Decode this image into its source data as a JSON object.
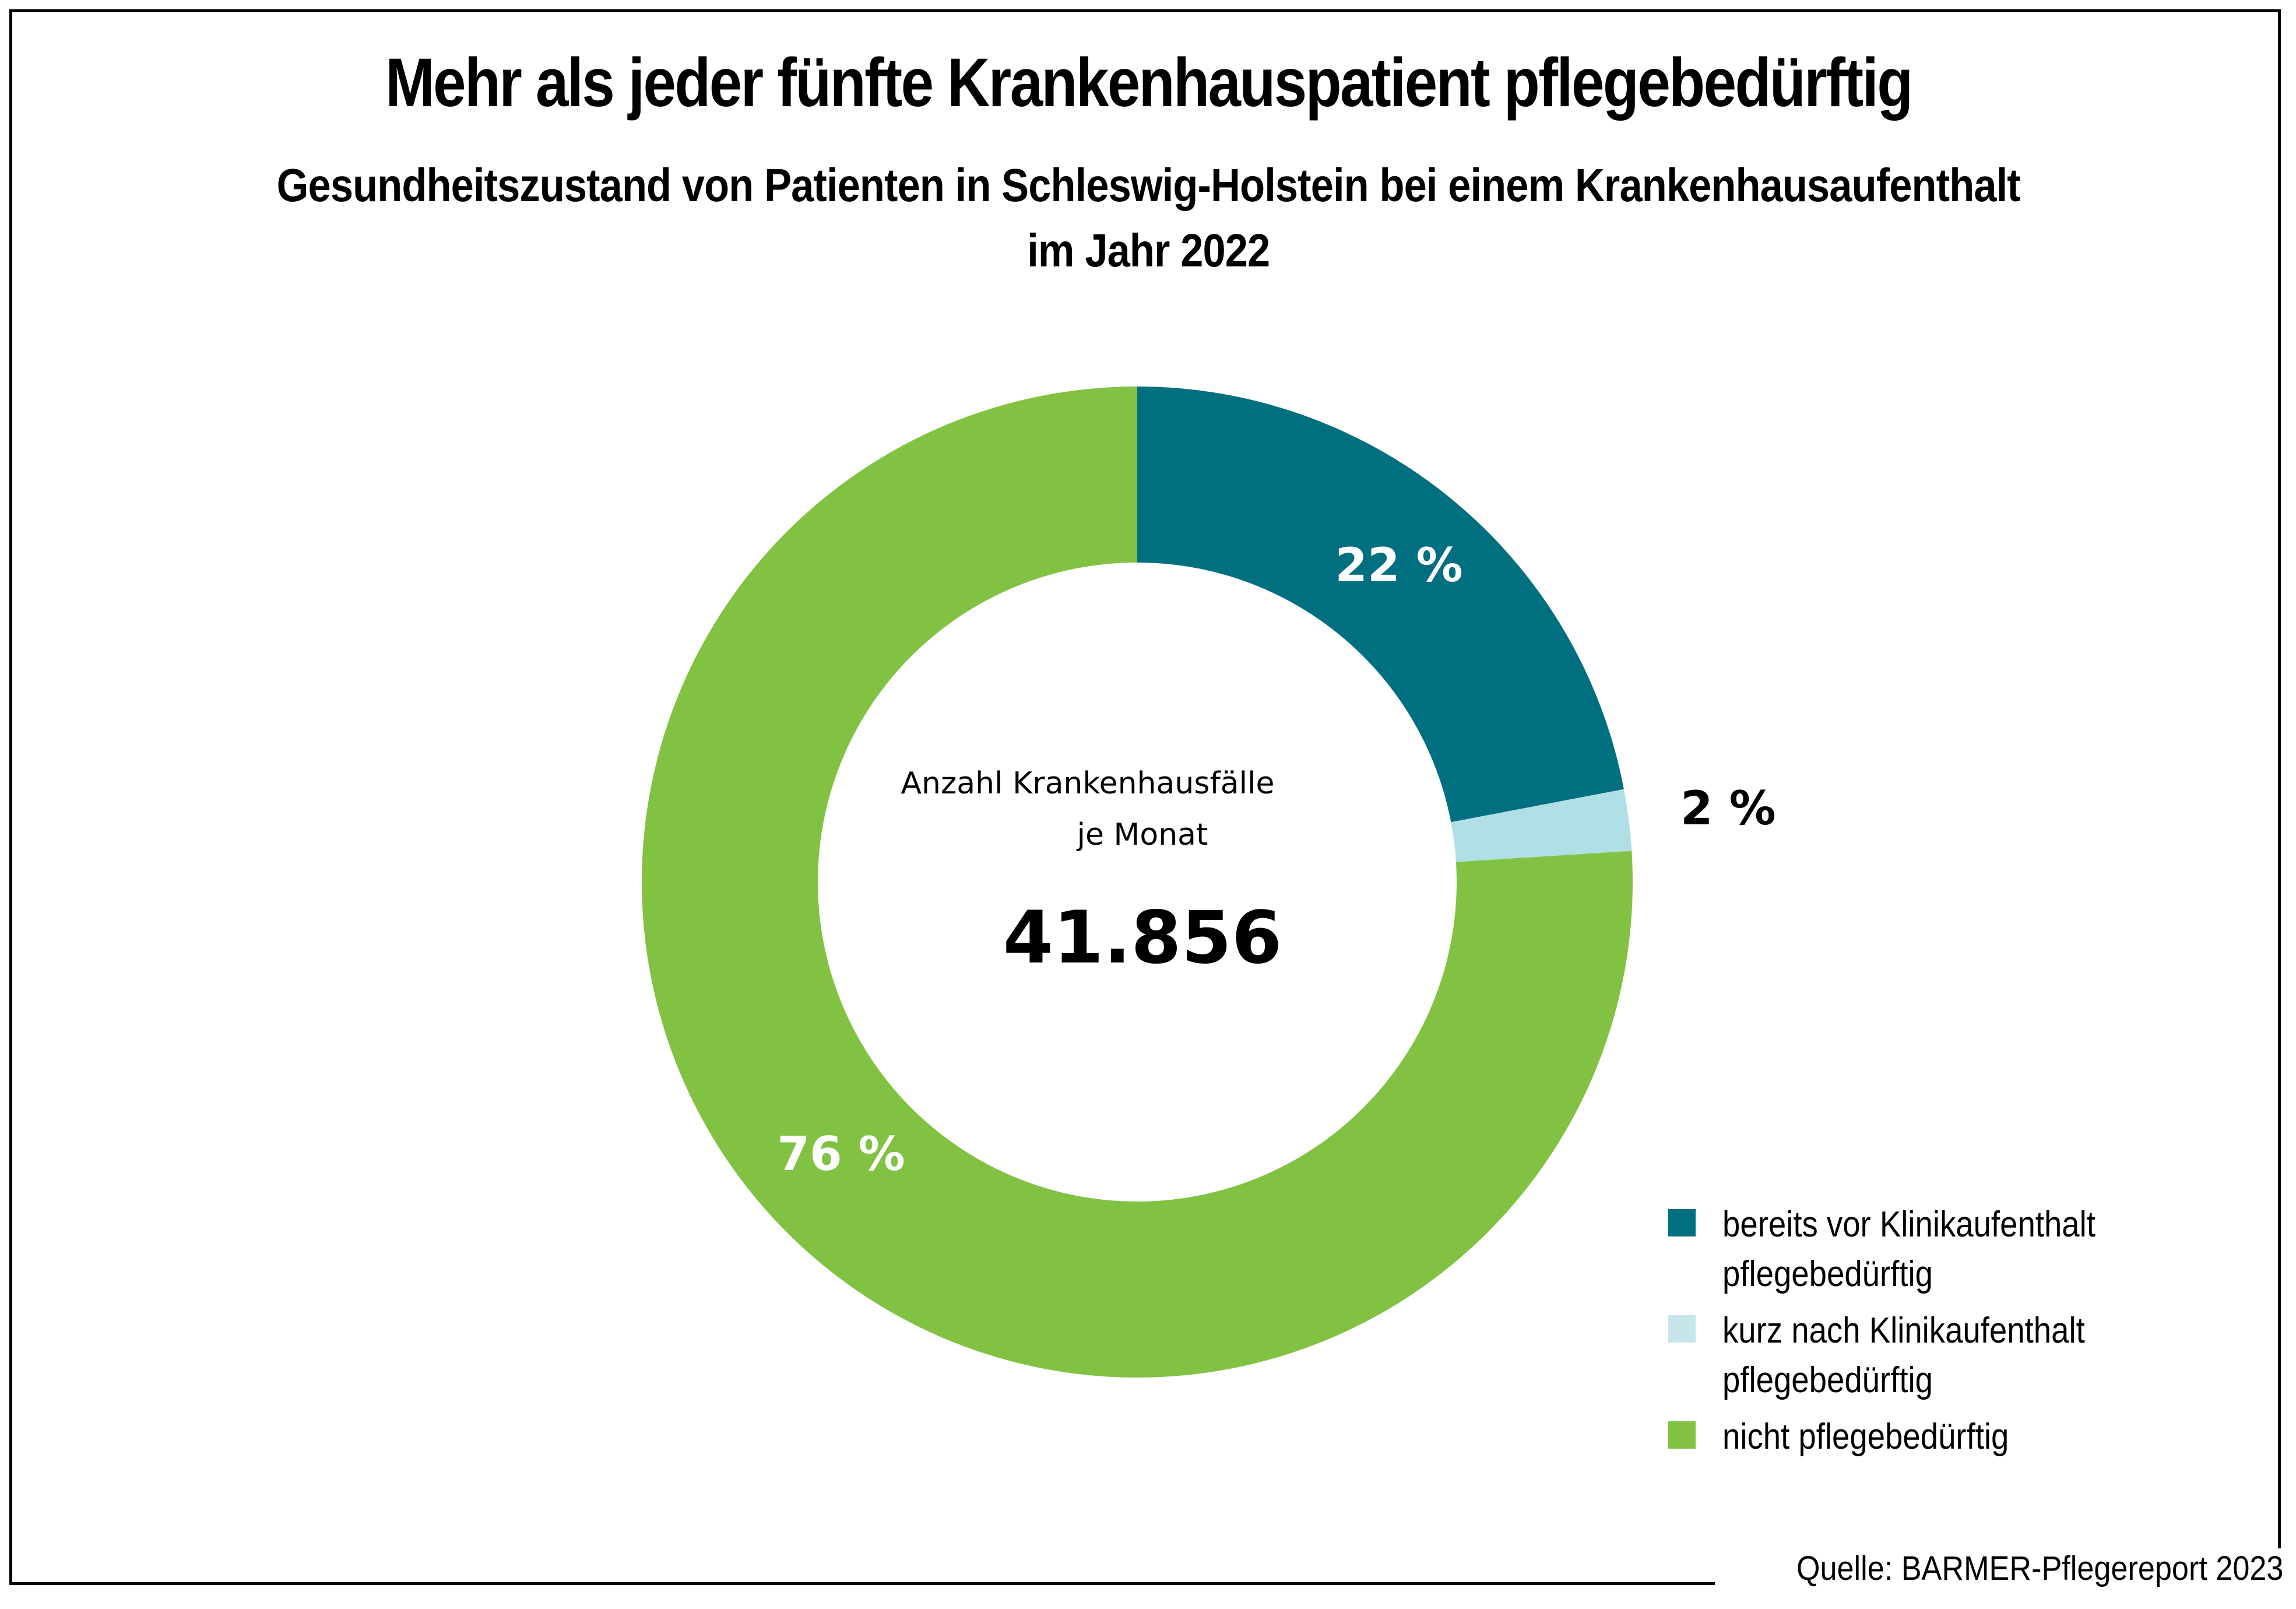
{
  "title": "Mehr als jeder fünfte Krankenhauspatient pflegebedürftig",
  "subtitle_line1": "Gesundheitszustand von Patienten in Schleswig-Holstein bei einem Krankenhausaufenthalt",
  "subtitle_line2": "im Jahr 2022",
  "center": {
    "caption_line1": "Anzahl Krankenhausfälle",
    "caption_line2": "je Monat",
    "value": "41.856"
  },
  "source": "Quelle: BARMER-Pflegereport 2023",
  "chart_data": {
    "type": "pie",
    "variant": "donut",
    "title": "Mehr als jeder fünfte Krankenhauspatient pflegebedürftig",
    "subtitle": "Gesundheitszustand von Patienten in Schleswig-Holstein bei einem Krankenhausaufenthalt im Jahr 2022",
    "center_label": "Anzahl Krankenhausfälle je Monat",
    "center_value": 41856,
    "unit": "%",
    "start": "top",
    "direction": "clockwise",
    "legend_position": "bottom-right",
    "slices": [
      {
        "name": "bereits vor Klinikaufenthalt pflegebedürftig",
        "legend_text": "bereits vor Klinikaufenthalt\npflegebedürftig",
        "value": 22,
        "label": "22 %",
        "color": "#006F80",
        "legend_color": "#006F80",
        "label_color": "#FFFFFF",
        "label_placement": "inside"
      },
      {
        "name": "kurz nach Klinikaufenthalt pflegebedürftig",
        "legend_text": "kurz nach Klinikaufenthalt\npflegebedürftig",
        "value": 2,
        "label": "2 %",
        "color": "#B0DFE5",
        "legend_color": "#C5E6EA",
        "label_color": "#000000",
        "label_placement": "outside"
      },
      {
        "name": "nicht pflegebedürftig",
        "legend_text": "nicht pflegebedürftig",
        "value": 76,
        "label": "76 %",
        "color": "#82C243",
        "legend_color": "#82C243",
        "label_color": "#FFFFFF",
        "label_placement": "inside"
      }
    ]
  }
}
